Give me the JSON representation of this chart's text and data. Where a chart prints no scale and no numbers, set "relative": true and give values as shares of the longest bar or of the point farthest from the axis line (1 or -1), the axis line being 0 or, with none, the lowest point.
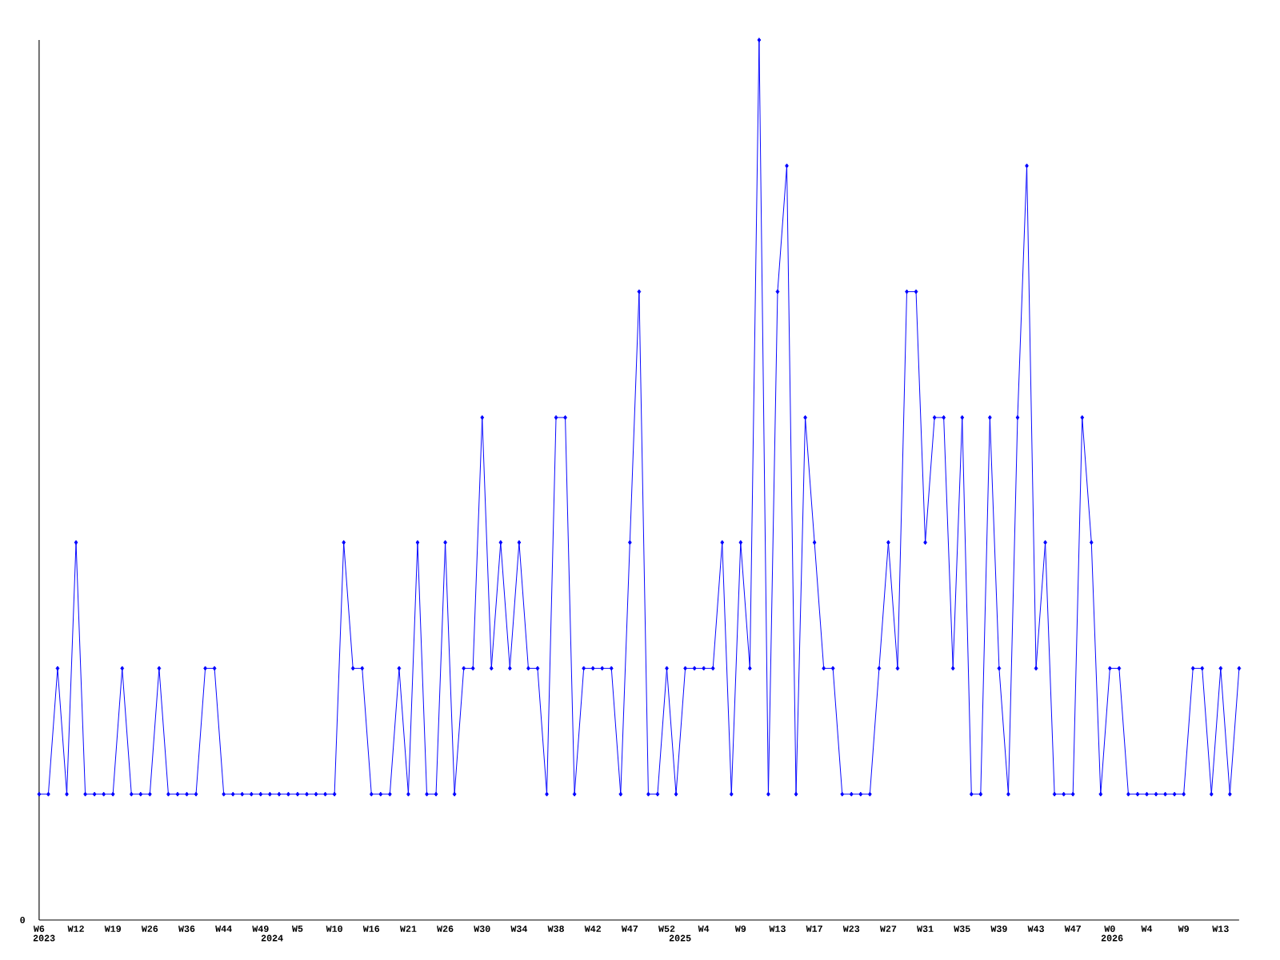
{
  "chart_data": {
    "type": "line",
    "relative": true,
    "color": "#0000ff",
    "marker": "diamond",
    "grid": false,
    "categories": [
      "W6",
      null,
      null,
      null,
      "W12",
      null,
      null,
      null,
      "W19",
      null,
      null,
      null,
      "W26",
      null,
      null,
      null,
      "W36",
      null,
      null,
      null,
      "W44",
      null,
      null,
      null,
      "W49",
      null,
      null,
      null,
      "W5",
      null,
      null,
      null,
      "W10",
      null,
      null,
      null,
      "W16",
      null,
      null,
      null,
      "W21",
      null,
      null,
      null,
      "W26",
      null,
      null,
      null,
      "W30",
      null,
      null,
      null,
      "W34",
      null,
      null,
      null,
      "W38",
      null,
      null,
      null,
      "W42",
      null,
      null,
      null,
      "W47",
      null,
      null,
      null,
      "W52",
      null,
      null,
      null,
      "W4",
      null,
      null,
      null,
      "W9",
      null,
      null,
      null,
      "W13",
      null,
      null,
      null,
      "W17",
      null,
      null,
      null,
      "W23",
      null,
      null,
      null,
      "W27",
      null,
      null,
      null,
      "W31",
      null,
      null,
      null,
      "W35",
      null,
      null,
      null,
      "W39",
      null,
      null,
      null,
      "W43",
      null,
      null,
      null,
      "W47",
      null,
      null,
      null,
      "W0",
      null,
      null,
      null,
      "W4",
      null,
      null,
      null,
      "W9",
      null,
      null,
      null,
      "W13",
      null,
      null
    ],
    "values": [
      0.143,
      0.143,
      0.286,
      0.143,
      0.429,
      0.143,
      0.143,
      0.143,
      0.143,
      0.286,
      0.143,
      0.143,
      0.143,
      0.286,
      0.143,
      0.143,
      0.143,
      0.143,
      0.286,
      0.286,
      0.143,
      0.143,
      0.143,
      0.143,
      0.143,
      0.143,
      0.143,
      0.143,
      0.143,
      0.143,
      0.143,
      0.143,
      0.143,
      0.429,
      0.286,
      0.286,
      0.143,
      0.143,
      0.143,
      0.286,
      0.143,
      0.429,
      0.143,
      0.143,
      0.429,
      0.143,
      0.286,
      0.286,
      0.571,
      0.286,
      0.429,
      0.286,
      0.429,
      0.286,
      0.286,
      0.143,
      0.571,
      0.571,
      0.143,
      0.286,
      0.286,
      0.286,
      0.286,
      0.143,
      0.429,
      0.714,
      0.143,
      0.143,
      0.286,
      0.143,
      0.286,
      0.286,
      0.286,
      0.286,
      0.429,
      0.143,
      0.429,
      0.286,
      1,
      0.143,
      0.714,
      0.857,
      0.143,
      0.571,
      0.429,
      0.286,
      0.286,
      0.143,
      0.143,
      0.143,
      0.143,
      0.286,
      0.429,
      0.286,
      0.714,
      0.714,
      0.429,
      0.571,
      0.571,
      0.286,
      0.571,
      0.143,
      0.143,
      0.571,
      0.286,
      0.143,
      0.571,
      0.857,
      0.286,
      0.429,
      0.143,
      0.143,
      0.143,
      0.571,
      0.429,
      0.143,
      0.286,
      0.286,
      0.143,
      0.143,
      0.143,
      0.143,
      0.143,
      0.143,
      0.143,
      0.286,
      0.286,
      0.143,
      0.286,
      0.143,
      0.286
    ],
    "annotations": [
      "0",
      "2023",
      "2024",
      "2025",
      "2026"
    ]
  }
}
